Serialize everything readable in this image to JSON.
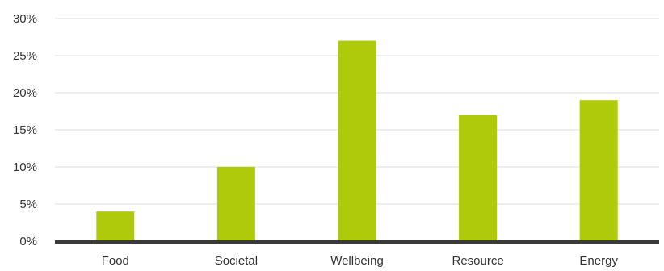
{
  "chart_data": {
    "type": "bar",
    "categories": [
      "Food",
      "Societal",
      "Wellbeing",
      "Resource",
      "Energy"
    ],
    "values": [
      4,
      10,
      27,
      17,
      19
    ],
    "ylim": [
      0,
      30
    ],
    "yticks": [
      0,
      5,
      10,
      15,
      20,
      25,
      30
    ],
    "ytick_labels": [
      "0%",
      "5%",
      "10%",
      "15%",
      "20%",
      "25%",
      "30%"
    ],
    "bar_color": "#afca0b",
    "grid_color": "#dddddd",
    "baseline_color": "#3a3a3a",
    "grid": true,
    "title": "",
    "xlabel": "",
    "ylabel": ""
  }
}
